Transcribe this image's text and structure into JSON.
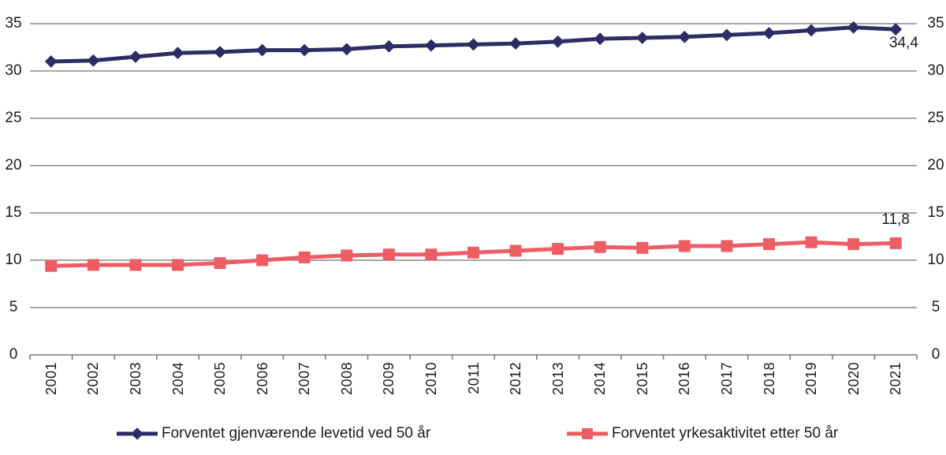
{
  "chart_data": {
    "type": "line",
    "x": [
      2001,
      2002,
      2003,
      2004,
      2005,
      2006,
      2007,
      2008,
      2009,
      2010,
      2011,
      2012,
      2013,
      2014,
      2015,
      2016,
      2017,
      2018,
      2019,
      2020,
      2021
    ],
    "series": [
      {
        "id": "levetid",
        "name": "Forventet gjenværende levetid ved 50 år",
        "color": "#2d2c64",
        "marker": "diamond",
        "values": [
          31.0,
          31.1,
          31.5,
          31.9,
          32.0,
          32.2,
          32.2,
          32.3,
          32.6,
          32.7,
          32.8,
          32.9,
          33.1,
          33.4,
          33.5,
          33.6,
          33.8,
          34.0,
          34.3,
          34.6,
          34.4
        ],
        "end_label": "34,4"
      },
      {
        "id": "yrkesaktivitet",
        "name": "Forventet yrkesaktivitet etter 50 år",
        "color": "#ee5d63",
        "marker": "square",
        "values": [
          9.4,
          9.5,
          9.5,
          9.5,
          9.7,
          10.0,
          10.3,
          10.5,
          10.6,
          10.6,
          10.8,
          11.0,
          11.2,
          11.4,
          11.3,
          11.5,
          11.5,
          11.7,
          11.9,
          11.7,
          11.8
        ],
        "end_label": "11,8"
      }
    ],
    "ylim": [
      0,
      35
    ],
    "ytick_step": 5,
    "yticks": [
      0,
      5,
      10,
      15,
      20,
      25,
      30,
      35
    ],
    "y_axis_sides": [
      "left",
      "right"
    ],
    "grid": true,
    "legend_position": "bottom",
    "colors": {
      "grid": "#9a9a9a",
      "axis": "#7a7a7a",
      "text": "#1a1a1a"
    }
  }
}
